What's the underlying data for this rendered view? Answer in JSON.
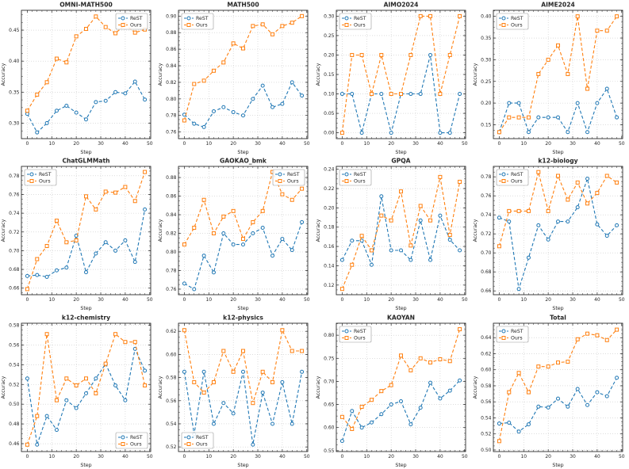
{
  "figure": {
    "xlabel": "Step",
    "ylabel": "Accuracy",
    "legend_labels": [
      "ReST",
      "Ours"
    ],
    "colors": {
      "rest": "#1f77b4",
      "ours": "#ff7f0e",
      "grid": "#c9c9c9",
      "spine": "#2b2b2b"
    },
    "xticks": [
      0,
      10,
      20,
      30,
      40,
      50
    ],
    "xlim": [
      -2.4,
      50.4
    ]
  },
  "chart_data": [
    {
      "type": "line",
      "title": "OMNI-MATH500",
      "xlabel": "Step",
      "ylabel": "Accuracy",
      "x": [
        0,
        4,
        8,
        12,
        16,
        20,
        24,
        28,
        32,
        36,
        40,
        44,
        48
      ],
      "series": [
        {
          "name": "ReST",
          "values": [
            0.315,
            0.285,
            0.3,
            0.32,
            0.328,
            0.317,
            0.306,
            0.334,
            0.336,
            0.35,
            0.348,
            0.367,
            0.338
          ]
        },
        {
          "name": "Ours",
          "values": [
            0.32,
            0.346,
            0.366,
            0.404,
            0.398,
            0.44,
            0.452,
            0.472,
            0.455,
            0.445,
            0.459,
            0.446,
            0.451
          ]
        }
      ],
      "yticks": [
        0.3,
        0.35,
        0.4,
        0.45
      ],
      "ylim": [
        0.275,
        0.482
      ],
      "legend_pos": "top-right"
    },
    {
      "type": "line",
      "title": "MATH500",
      "xlabel": "Step",
      "ylabel": "Accuracy",
      "x": [
        0,
        4,
        8,
        12,
        16,
        20,
        24,
        28,
        32,
        36,
        40,
        44,
        48
      ],
      "series": [
        {
          "name": "ReST",
          "values": [
            0.781,
            0.77,
            0.766,
            0.785,
            0.79,
            0.784,
            0.78,
            0.8,
            0.816,
            0.79,
            0.794,
            0.82,
            0.804
          ]
        },
        {
          "name": "Ours",
          "values": [
            0.774,
            0.818,
            0.822,
            0.834,
            0.844,
            0.867,
            0.861,
            0.888,
            0.89,
            0.878,
            0.888,
            0.892,
            0.9
          ]
        }
      ],
      "yticks": [
        0.76,
        0.78,
        0.8,
        0.82,
        0.84,
        0.86,
        0.88,
        0.9
      ],
      "ylim": [
        0.752,
        0.907
      ],
      "legend_pos": "top-left"
    },
    {
      "type": "line",
      "title": "AIMO2024",
      "xlabel": "Step",
      "ylabel": "Accuracy",
      "x": [
        0,
        4,
        8,
        12,
        16,
        20,
        24,
        28,
        32,
        36,
        40,
        44,
        48
      ],
      "series": [
        {
          "name": "ReST",
          "values": [
            0.1,
            0.1,
            0.0,
            0.1,
            0.1,
            0.0,
            0.1,
            0.1,
            0.1,
            0.2,
            0.0,
            0.0,
            0.1
          ]
        },
        {
          "name": "Ours",
          "values": [
            0.0,
            0.2,
            0.2,
            0.1,
            0.2,
            0.1,
            0.1,
            0.2,
            0.3,
            0.3,
            0.1,
            0.2,
            0.3
          ]
        }
      ],
      "yticks": [
        0.0,
        0.05,
        0.1,
        0.15,
        0.2,
        0.25,
        0.3
      ],
      "ylim": [
        -0.015,
        0.315
      ],
      "legend_pos": "top-left"
    },
    {
      "type": "line",
      "title": "AIME2024",
      "xlabel": "Step",
      "ylabel": "Accuracy",
      "x": [
        0,
        4,
        8,
        12,
        16,
        20,
        24,
        28,
        32,
        36,
        40,
        44,
        48
      ],
      "series": [
        {
          "name": "ReST",
          "values": [
            0.133,
            0.2,
            0.2,
            0.133,
            0.167,
            0.167,
            0.167,
            0.133,
            0.2,
            0.133,
            0.2,
            0.233,
            0.167
          ]
        },
        {
          "name": "Ours",
          "values": [
            0.133,
            0.167,
            0.167,
            0.167,
            0.267,
            0.3,
            0.333,
            0.267,
            0.4,
            0.233,
            0.367,
            0.367,
            0.4
          ]
        }
      ],
      "yticks": [
        0.15,
        0.2,
        0.25,
        0.3,
        0.35,
        0.4
      ],
      "ylim": [
        0.118,
        0.414
      ],
      "legend_pos": "top-left"
    },
    {
      "type": "line",
      "title": "ChatGLMMath",
      "xlabel": "Step",
      "ylabel": "Accuracy",
      "x": [
        0,
        4,
        8,
        12,
        16,
        20,
        24,
        28,
        32,
        36,
        40,
        44,
        48
      ],
      "series": [
        {
          "name": "ReST",
          "values": [
            0.673,
            0.674,
            0.672,
            0.679,
            0.682,
            0.716,
            0.677,
            0.697,
            0.709,
            0.7,
            0.711,
            0.688,
            0.744
          ]
        },
        {
          "name": "Ours",
          "values": [
            0.659,
            0.691,
            0.705,
            0.732,
            0.709,
            0.711,
            0.758,
            0.744,
            0.763,
            0.762,
            0.768,
            0.753,
            0.784
          ]
        }
      ],
      "yticks": [
        0.66,
        0.68,
        0.7,
        0.72,
        0.74,
        0.76,
        0.78
      ],
      "ylim": [
        0.653,
        0.79
      ],
      "legend_pos": "top-left"
    },
    {
      "type": "line",
      "title": "GAOKAO_bmk",
      "xlabel": "Step",
      "ylabel": "Accuracy",
      "x": [
        0,
        4,
        8,
        12,
        16,
        20,
        24,
        28,
        32,
        36,
        40,
        44,
        48
      ],
      "series": [
        {
          "name": "ReST",
          "values": [
            0.766,
            0.76,
            0.796,
            0.778,
            0.82,
            0.808,
            0.808,
            0.82,
            0.826,
            0.796,
            0.814,
            0.802,
            0.832
          ]
        },
        {
          "name": "Ours",
          "values": [
            0.808,
            0.826,
            0.856,
            0.82,
            0.838,
            0.844,
            0.814,
            0.832,
            0.844,
            0.886,
            0.862,
            0.856,
            0.868
          ]
        }
      ],
      "yticks": [
        0.76,
        0.78,
        0.8,
        0.82,
        0.84,
        0.86,
        0.88
      ],
      "ylim": [
        0.754,
        0.892
      ],
      "legend_pos": "top-right"
    },
    {
      "type": "line",
      "title": "GPQA",
      "xlabel": "Step",
      "ylabel": "Accuracy",
      "x": [
        0,
        4,
        8,
        12,
        16,
        20,
        24,
        28,
        32,
        36,
        40,
        44,
        48
      ],
      "series": [
        {
          "name": "ReST",
          "values": [
            0.146,
            0.166,
            0.166,
            0.141,
            0.212,
            0.156,
            0.156,
            0.146,
            0.187,
            0.146,
            0.192,
            0.167,
            0.156
          ]
        },
        {
          "name": "Ours",
          "values": [
            0.116,
            0.141,
            0.171,
            0.156,
            0.192,
            0.187,
            0.217,
            0.161,
            0.202,
            0.187,
            0.232,
            0.172,
            0.227
          ]
        }
      ],
      "yticks": [
        0.12,
        0.14,
        0.16,
        0.18,
        0.2,
        0.22,
        0.24
      ],
      "ylim": [
        0.11,
        0.243
      ],
      "legend_pos": "top-left"
    },
    {
      "type": "line",
      "title": "k12-biology",
      "xlabel": "Step",
      "ylabel": "Accuracy",
      "x": [
        0,
        4,
        8,
        12,
        16,
        20,
        24,
        28,
        32,
        36,
        40,
        44,
        48
      ],
      "series": [
        {
          "name": "ReST",
          "values": [
            0.737,
            0.733,
            0.662,
            0.695,
            0.729,
            0.714,
            0.733,
            0.733,
            0.748,
            0.778,
            0.73,
            0.718,
            0.729
          ]
        },
        {
          "name": "Ours",
          "values": [
            0.707,
            0.744,
            0.744,
            0.744,
            0.785,
            0.744,
            0.781,
            0.756,
            0.774,
            0.752,
            0.763,
            0.781,
            0.774
          ]
        }
      ],
      "yticks": [
        0.66,
        0.68,
        0.7,
        0.72,
        0.74,
        0.76,
        0.78
      ],
      "ylim": [
        0.656,
        0.791
      ],
      "legend_pos": "top-left"
    },
    {
      "type": "line",
      "title": "k12-chemistry",
      "xlabel": "Step",
      "ylabel": "Accuracy",
      "x": [
        0,
        4,
        8,
        12,
        16,
        20,
        24,
        28,
        32,
        36,
        40,
        44,
        48
      ],
      "series": [
        {
          "name": "ReST",
          "values": [
            0.526,
            0.459,
            0.488,
            0.474,
            0.504,
            0.496,
            0.511,
            0.526,
            0.541,
            0.519,
            0.504,
            0.556,
            0.534
          ]
        },
        {
          "name": "Ours",
          "values": [
            0.459,
            0.488,
            0.571,
            0.504,
            0.526,
            0.519,
            0.526,
            0.511,
            0.541,
            0.571,
            0.563,
            0.563,
            0.519
          ]
        }
      ],
      "yticks": [
        0.46,
        0.48,
        0.5,
        0.52,
        0.54,
        0.56,
        0.58
      ],
      "ylim": [
        0.452,
        0.582
      ],
      "legend_pos": "bottom-right"
    },
    {
      "type": "line",
      "title": "k12-physics",
      "xlabel": "Step",
      "ylabel": "Accuracy",
      "x": [
        0,
        4,
        8,
        12,
        16,
        20,
        24,
        28,
        32,
        36,
        40,
        44,
        48
      ],
      "series": [
        {
          "name": "ReST",
          "values": [
            0.585,
            0.531,
            0.585,
            0.54,
            0.558,
            0.549,
            0.585,
            0.522,
            0.567,
            0.54,
            0.576,
            0.54,
            0.585
          ]
        },
        {
          "name": "Ours",
          "values": [
            0.621,
            0.576,
            0.567,
            0.576,
            0.603,
            0.585,
            0.603,
            0.558,
            0.585,
            0.576,
            0.621,
            0.603,
            0.603
          ]
        }
      ],
      "yticks": [
        0.52,
        0.54,
        0.56,
        0.58,
        0.6,
        0.62
      ],
      "ylim": [
        0.516,
        0.627
      ],
      "legend_pos": "bottom-left"
    },
    {
      "type": "line",
      "title": "KAOYAN",
      "xlabel": "Step",
      "ylabel": "Accuracy",
      "x": [
        0,
        4,
        8,
        12,
        16,
        20,
        24,
        28,
        32,
        36,
        40,
        44,
        48
      ],
      "series": [
        {
          "name": "ReST",
          "values": [
            0.571,
            0.636,
            0.6,
            0.611,
            0.629,
            0.65,
            0.657,
            0.607,
            0.643,
            0.697,
            0.663,
            0.68,
            0.702
          ]
        },
        {
          "name": "Ours",
          "values": [
            0.623,
            0.597,
            0.645,
            0.66,
            0.679,
            0.692,
            0.756,
            0.724,
            0.75,
            0.741,
            0.748,
            0.744,
            0.813
          ]
        }
      ],
      "yticks": [
        0.55,
        0.6,
        0.65,
        0.7,
        0.75,
        0.8
      ],
      "ylim": [
        0.548,
        0.826
      ],
      "legend_pos": "top-left"
    },
    {
      "type": "line",
      "title": "Total",
      "xlabel": "Step",
      "ylabel": "Accuracy",
      "x": [
        0,
        4,
        8,
        12,
        16,
        20,
        24,
        28,
        32,
        36,
        40,
        44,
        48
      ],
      "series": [
        {
          "name": "ReST",
          "values": [
            0.533,
            0.534,
            0.523,
            0.532,
            0.554,
            0.553,
            0.564,
            0.554,
            0.576,
            0.556,
            0.572,
            0.567,
            0.59
          ]
        },
        {
          "name": "Ours",
          "values": [
            0.511,
            0.572,
            0.596,
            0.572,
            0.604,
            0.604,
            0.609,
            0.61,
            0.638,
            0.645,
            0.643,
            0.637,
            0.65
          ]
        }
      ],
      "yticks": [
        0.5,
        0.52,
        0.54,
        0.56,
        0.58,
        0.6,
        0.62,
        0.64,
        0.66
      ],
      "ylim": [
        0.498,
        0.658
      ],
      "legend_pos": "top-left"
    }
  ]
}
